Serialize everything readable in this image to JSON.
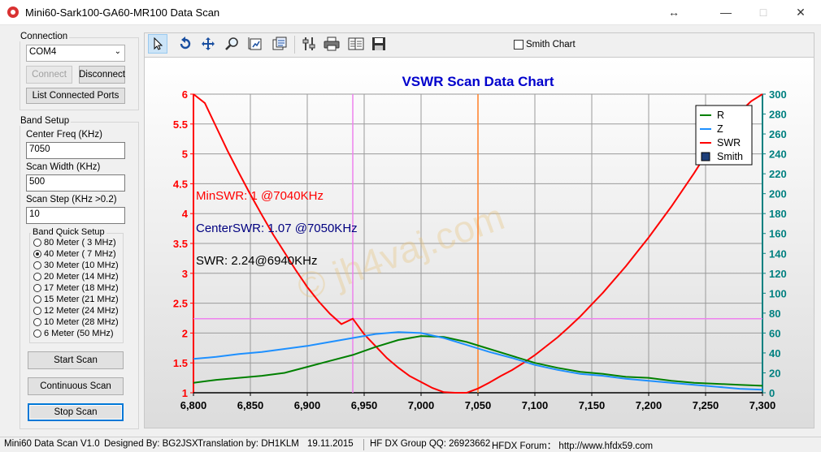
{
  "window": {
    "title": "Mini60-Sark100-GA60-MR100 Data Scan"
  },
  "connection": {
    "group_label": "Connection",
    "port": "COM4",
    "connect_label": "Connect",
    "disconnect_label": "Disconnect",
    "list_ports_label": "List Connected Ports"
  },
  "band_setup": {
    "group_label": "Band Setup",
    "center_freq_label": "Center Freq  (KHz)",
    "center_freq": "7050",
    "scan_width_label": "Scan Width   (KHz)",
    "scan_width": "500",
    "scan_step_label": "Scan Step      (KHz >0.2)",
    "scan_step": "10",
    "quick_label": "Band Quick Setup",
    "bands": [
      {
        "label": "80 Meter (  3 MHz)",
        "selected": false
      },
      {
        "label": "40 Meter (  7 MHz)",
        "selected": true
      },
      {
        "label": "30 Meter (10 MHz)",
        "selected": false
      },
      {
        "label": "20 Meter (14 MHz)",
        "selected": false
      },
      {
        "label": "17 Meter (18 MHz)",
        "selected": false
      },
      {
        "label": "15 Meter (21 MHz)",
        "selected": false
      },
      {
        "label": "12 Meter (24 MHz)",
        "selected": false
      },
      {
        "label": "10 Meter (28 MHz)",
        "selected": false
      },
      {
        "label": "6 Meter   (50 MHz)",
        "selected": false
      }
    ]
  },
  "actions": {
    "start_label": "Start Scan",
    "continuous_label": "Continuous Scan",
    "stop_label": "Stop Scan"
  },
  "toolbar": {
    "icons": [
      "pointer-icon",
      "undo-icon",
      "pan-icon",
      "zoom-icon",
      "save-image-icon",
      "copy-icon",
      "settings-icon",
      "print-icon",
      "export-icon",
      "save-icon"
    ],
    "smith_label": "Smith Chart"
  },
  "annotations": {
    "min_swr": "MinSWR: 1 @7040KHz",
    "center_swr": "CenterSWR: 1.07 @7050KHz",
    "swr_at": "SWR: 2.24@6940KHz"
  },
  "watermark": "© jh4vaj.com",
  "status": {
    "version": "Mini60 Data Scan V1.0",
    "designer": "Designed By: BG2JSX",
    "translation": "Translation by: DH1KLM",
    "date": "19.11.2015",
    "group": "HF DX Group QQ: 26923662",
    "forum": "HFDX Forum：  http://www.hfdx59.com"
  },
  "colors": {
    "swr": "#ff0000",
    "r": "#008000",
    "z": "#1e90ff",
    "marker_v_pink": "#ee82ee",
    "marker_v_orange": "#ff7f27",
    "title": "#0000cc",
    "right_axis": "#008080"
  },
  "chart_data": {
    "type": "line",
    "title": "VSWR Scan Data Chart",
    "x_ticks": [
      "6,800",
      "6,850",
      "6,900",
      "6,950",
      "7,000",
      "7,050",
      "7,100",
      "7,150",
      "7,200",
      "7,250",
      "7,300"
    ],
    "y_left_ticks": [
      "6",
      "5.5",
      "5",
      "4.5",
      "4",
      "3.5",
      "3",
      "2.5",
      "2",
      "1.5",
      "1"
    ],
    "y_right_ticks": [
      "300",
      "280",
      "260",
      "240",
      "220",
      "200",
      "180",
      "160",
      "140",
      "120",
      "100",
      "80",
      "60",
      "40",
      "20",
      "0"
    ],
    "xlim": [
      6800,
      7300
    ],
    "ylim_left": [
      1,
      6
    ],
    "ylim_right": [
      0,
      300
    ],
    "markers": {
      "vertical": [
        6940,
        7050
      ],
      "horizontal_swr": 2.24
    },
    "legend": {
      "position": "top-right",
      "entries": [
        "R",
        "Z",
        "SWR",
        "Smith"
      ]
    },
    "series": [
      {
        "name": "SWR",
        "axis": "left",
        "x": [
          6800,
          6810,
          6820,
          6830,
          6840,
          6850,
          6860,
          6870,
          6880,
          6890,
          6900,
          6910,
          6920,
          6930,
          6940,
          6950,
          6960,
          6970,
          6980,
          6990,
          7000,
          7010,
          7020,
          7030,
          7040,
          7050,
          7060,
          7070,
          7080,
          7090,
          7100,
          7110,
          7120,
          7130,
          7140,
          7150,
          7160,
          7170,
          7180,
          7190,
          7200,
          7210,
          7220,
          7230,
          7240,
          7250,
          7260,
          7270,
          7280,
          7290,
          7300
        ],
        "values": [
          6.0,
          5.85,
          5.45,
          5.05,
          4.68,
          4.32,
          3.98,
          3.65,
          3.35,
          3.05,
          2.77,
          2.53,
          2.32,
          2.15,
          2.24,
          1.98,
          1.78,
          1.58,
          1.42,
          1.28,
          1.18,
          1.08,
          1.01,
          1.0,
          1.0,
          1.07,
          1.17,
          1.28,
          1.38,
          1.5,
          1.63,
          1.78,
          1.93,
          2.1,
          2.28,
          2.48,
          2.68,
          2.9,
          3.12,
          3.36,
          3.6,
          3.86,
          4.12,
          4.4,
          4.68,
          4.98,
          5.24,
          5.48,
          5.7,
          5.88,
          6.0
        ]
      },
      {
        "name": "R",
        "axis": "right",
        "x": [
          6800,
          6820,
          6840,
          6860,
          6880,
          6900,
          6920,
          6940,
          6960,
          6980,
          7000,
          7020,
          7040,
          7060,
          7080,
          7100,
          7120,
          7140,
          7160,
          7180,
          7200,
          7220,
          7240,
          7260,
          7280,
          7300
        ],
        "values": [
          10,
          13,
          15,
          17,
          20,
          26,
          32,
          38,
          46,
          53,
          57,
          56,
          51,
          44,
          37,
          30,
          25,
          21,
          19,
          16,
          15,
          12,
          10,
          9,
          8,
          7
        ]
      },
      {
        "name": "Z",
        "axis": "right",
        "x": [
          6800,
          6820,
          6840,
          6860,
          6880,
          6900,
          6920,
          6940,
          6960,
          6980,
          7000,
          7020,
          7040,
          7060,
          7080,
          7100,
          7120,
          7140,
          7160,
          7180,
          7200,
          7220,
          7240,
          7260,
          7280,
          7300
        ],
        "values": [
          34,
          36,
          39,
          41,
          44,
          47,
          51,
          55,
          59,
          61,
          60,
          55,
          48,
          41,
          35,
          28,
          23,
          19,
          17,
          14,
          12,
          10,
          8,
          6,
          4,
          3
        ]
      }
    ]
  }
}
